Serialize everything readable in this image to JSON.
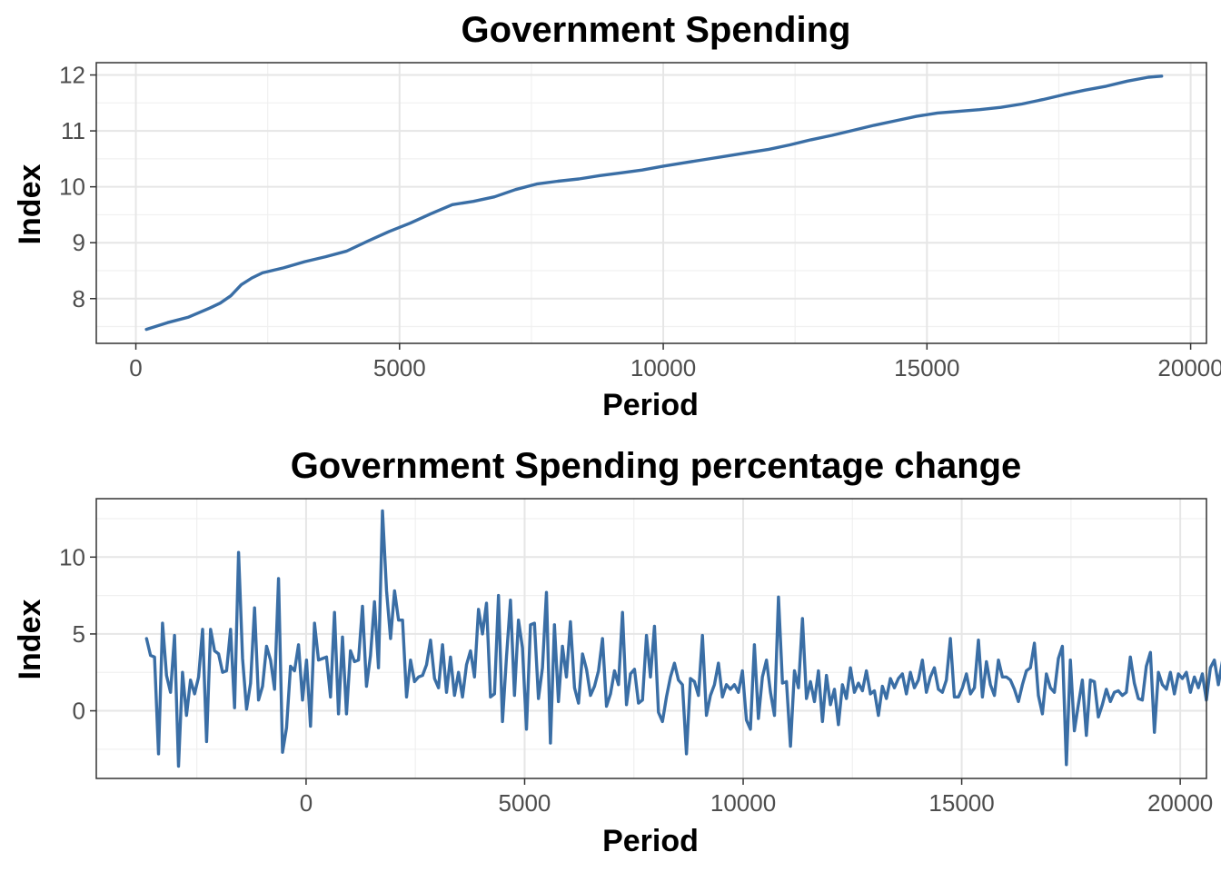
{
  "chart_data": [
    {
      "type": "line",
      "title": "Government Spending",
      "xlabel": "Period",
      "ylabel": "Index",
      "xlim": [
        -750,
        20300
      ],
      "ylim": [
        7.2,
        12.22
      ],
      "xticks": [
        0,
        5000,
        10000,
        15000,
        20000
      ],
      "xtick_labels": [
        "0",
        "5000",
        "10000",
        "15000",
        "20000"
      ],
      "yticks": [
        8,
        9,
        10,
        11,
        12
      ],
      "ytick_labels": [
        "8",
        "9",
        "10",
        "11",
        "12"
      ],
      "grid": true,
      "color": "#3a6ea5",
      "series": [
        {
          "x": [
            200,
            600,
            1000,
            1400,
            1600,
            1800,
            2000,
            2200,
            2400,
            2800,
            3200,
            3600,
            4000,
            4400,
            4800,
            5200,
            5600,
            6000,
            6400,
            6800,
            7200,
            7600,
            8000,
            8400,
            8800,
            9200,
            9600,
            10000,
            10400,
            10800,
            11200,
            11600,
            12000,
            12400,
            12800,
            13200,
            13600,
            14000,
            14400,
            14800,
            15200,
            15600,
            16000,
            16400,
            16800,
            17200,
            17600,
            18000,
            18400,
            18800,
            19200,
            19450
          ],
          "y": [
            7.45,
            7.57,
            7.67,
            7.83,
            7.92,
            8.05,
            8.25,
            8.37,
            8.46,
            8.55,
            8.66,
            8.75,
            8.85,
            9.03,
            9.2,
            9.35,
            9.52,
            9.68,
            9.74,
            9.82,
            9.95,
            10.05,
            10.1,
            10.14,
            10.2,
            10.25,
            10.3,
            10.37,
            10.43,
            10.49,
            10.55,
            10.61,
            10.67,
            10.75,
            10.84,
            10.92,
            11.01,
            11.1,
            11.18,
            11.26,
            11.32,
            11.35,
            11.38,
            11.42,
            11.48,
            11.56,
            11.65,
            11.73,
            11.8,
            11.89,
            11.96,
            11.98
          ]
        }
      ]
    },
    {
      "type": "line",
      "title": "Government Spending percentage change",
      "xlabel": "Period",
      "ylabel": "Index",
      "xlim": [
        -4800,
        20600
      ],
      "ylim": [
        -4.4,
        13.8
      ],
      "xticks": [
        0,
        5000,
        10000,
        15000,
        20000
      ],
      "xtick_labels": [
        "0",
        "5000",
        "10000",
        "15000",
        "20000"
      ],
      "yticks": [
        0,
        5,
        10
      ],
      "ytick_labels": [
        "0",
        "5",
        "10"
      ],
      "grid": true,
      "color": "#3a6ea5",
      "series": [
        {
          "x_start": -3650,
          "x_step": 91.5,
          "y": [
            4.7,
            3.6,
            3.5,
            -2.8,
            5.7,
            2.3,
            1.2,
            4.9,
            -3.6,
            2.5,
            -0.3,
            2.0,
            1.1,
            2.2,
            5.3,
            -2.0,
            5.3,
            3.9,
            3.7,
            2.5,
            2.6,
            5.3,
            0.2,
            10.3,
            3.4,
            0.1,
            1.8,
            6.7,
            0.7,
            1.6,
            4.2,
            3.3,
            1.4,
            8.6,
            -2.7,
            -1.1,
            2.9,
            2.6,
            4.3,
            0.7,
            3.3,
            -1.0,
            5.7,
            3.3,
            3.4,
            3.5,
            0.9,
            6.4,
            -0.2,
            4.8,
            -0.2,
            3.9,
            3.2,
            3.3,
            6.8,
            1.6,
            3.6,
            7.1,
            2.8,
            13.0,
            7.8,
            4.7,
            7.8,
            5.9,
            5.9,
            0.9,
            3.3,
            1.9,
            2.2,
            2.3,
            3.0,
            4.6,
            2.1,
            1.5,
            4.3,
            1.2,
            3.5,
            1.0,
            2.5,
            0.9,
            3.0,
            3.9,
            2.2,
            6.6,
            5.0,
            7.0,
            0.9,
            1.1,
            7.5,
            -0.7,
            3.5,
            7.2,
            1.0,
            5.9,
            4.1,
            -1.2,
            5.6,
            5.7,
            0.8,
            2.8,
            7.7,
            -2.1,
            5.6,
            0.6,
            4.2,
            2.2,
            5.8,
            1.5,
            0.5,
            3.7,
            2.7,
            1.0,
            1.6,
            2.6,
            4.7,
            0.3,
            1.1,
            2.6,
            1.7,
            6.4,
            0.4,
            2.4,
            2.7,
            0.5,
            0.7,
            4.9,
            2.2,
            5.5,
            -0.1,
            -0.7,
            0.9,
            2.2,
            3.1,
            2.0,
            1.7,
            -2.8,
            2.1,
            1.9,
            1.0,
            4.9,
            -0.3,
            1.0,
            1.7,
            3.1,
            0.9,
            1.7,
            1.4,
            1.7,
            1.2,
            2.6,
            -0.6,
            -1.2,
            4.3,
            -0.5,
            2.2,
            3.3,
            1.2,
            -0.3,
            7.4,
            1.8,
            1.9,
            -2.3,
            2.6,
            1.5,
            6.0,
            0.8,
            1.9,
            0.6,
            2.6,
            -0.7,
            2.3,
            0.4,
            1.4,
            -0.9,
            1.7,
            0.8,
            2.8,
            1.2,
            1.8,
            1.3,
            2.6,
            1.1,
            1.3,
            -0.3,
            1.6,
            0.8,
            2.1,
            1.5,
            2.1,
            2.4,
            1.1,
            2.5,
            1.5,
            2.0,
            3.3,
            1.2,
            2.2,
            2.8,
            1.4,
            1.2,
            2.0,
            4.7,
            0.9,
            0.9,
            1.5,
            2.4,
            1.1,
            1.5,
            4.6,
            0.9,
            3.2,
            1.7,
            1.0,
            3.3,
            2.2,
            2.2,
            2.0,
            1.4,
            0.6,
            1.7,
            2.6,
            2.8,
            4.4,
            1.0,
            -0.2,
            2.4,
            1.5,
            1.2,
            3.4,
            4.2,
            -3.5,
            3.3,
            -1.3,
            0.4,
            2.0,
            -1.6,
            2.0,
            1.9,
            -0.4,
            0.4,
            1.4,
            0.6,
            1.2,
            1.3,
            1.0,
            1.2,
            3.5,
            1.8,
            0.8,
            0.7,
            2.9,
            3.8,
            -1.4,
            2.5,
            1.7,
            1.4,
            2.5,
            1.1,
            2.4,
            2.1,
            2.5,
            1.2,
            2.2,
            1.5,
            2.4,
            0.7,
            2.8,
            3.3,
            1.7,
            3.2,
            1.1,
            0.9,
            0.8,
            1.8
          ]
        }
      ]
    }
  ]
}
